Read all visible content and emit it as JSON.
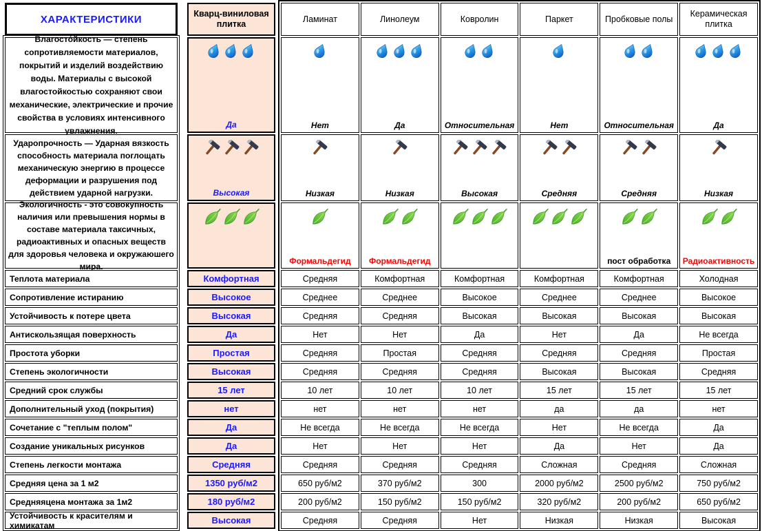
{
  "colors": {
    "accent_blue": "#1a1aff",
    "highlight_bg": "#fce4d6",
    "alert_red": "#ff0000",
    "border": "#000000"
  },
  "left_panel": {
    "title": "ХАРАКТЕРИСТИКИ"
  },
  "quartz_column": {
    "header": "Кварц-виниловая плитка"
  },
  "columns": [
    "Ламинат",
    "Линолеум",
    "Ковролин",
    "Паркет",
    "Пробковые полы",
    "Керамическая плитка"
  ],
  "icon_rows": [
    {
      "key": "moisture-resistance",
      "icon": "water-drop",
      "label_italic": true,
      "description": "Влагосто́йкость — степень сопротивляемости материалов, покрытий и изделий воздействию воды. Материалы с высокой влагостойкостью сохраняют свои механические, электрические и прочие свойства в условиях интенсивного увлажнения.",
      "quartz": {
        "count": 3,
        "label": "Да"
      },
      "cells": [
        {
          "count": 1,
          "label": "Нет",
          "red": false
        },
        {
          "count": 3,
          "label": "Да",
          "red": false
        },
        {
          "count": 2,
          "label": "Относительная",
          "red": false
        },
        {
          "count": 1,
          "label": "Нет",
          "red": false
        },
        {
          "count": 2,
          "label": "Относительная",
          "red": false
        },
        {
          "count": 3,
          "label": "Да",
          "red": false
        }
      ]
    },
    {
      "key": "impact-resistance",
      "icon": "hammer",
      "label_italic": true,
      "description": "Ударопрочность — Ударная вязкость способность материала поглощать механическую энергию в процессе деформации и разрушения под действием ударной нагрузки.",
      "quartz": {
        "count": 3,
        "label": "Высокая"
      },
      "cells": [
        {
          "count": 1,
          "label": "Низкая",
          "red": false
        },
        {
          "count": 1,
          "label": "Низкая",
          "red": false
        },
        {
          "count": 3,
          "label": "Высокая",
          "red": false
        },
        {
          "count": 2,
          "label": "Средняя",
          "red": false
        },
        {
          "count": 2,
          "label": "Средняя",
          "red": false
        },
        {
          "count": 1,
          "label": "Низкая",
          "red": false
        }
      ]
    },
    {
      "key": "eco-friendliness",
      "icon": "leaf",
      "label_italic": false,
      "description": "Экологичность - это совокупность наличия или превышения нормы в составе материала таксичных, радиоактивных и опасных веществ для здоровья человека и окружаюшего мира.",
      "quartz": {
        "count": 3,
        "label": ""
      },
      "cells": [
        {
          "count": 1,
          "label": "Формальдегид",
          "red": true
        },
        {
          "count": 2,
          "label": "Формальдегид",
          "red": true
        },
        {
          "count": 3,
          "label": "",
          "red": false
        },
        {
          "count": 3,
          "label": "",
          "red": false
        },
        {
          "count": 2,
          "label": "пост обработка",
          "red": false
        },
        {
          "count": 2,
          "label": "Радиоактивность",
          "red": true
        }
      ]
    }
  ],
  "simple_rows": [
    {
      "label": "Теплота материала",
      "quartz": "Комфортная",
      "cells": [
        "Средняя",
        "Комфортная",
        "Комфортная",
        "Комфортная",
        "Комфортная",
        "Холодная"
      ]
    },
    {
      "label": "Сопротивление истиранию",
      "quartz": "Высокое",
      "cells": [
        "Среднее",
        "Среднее",
        "Высокое",
        "Среднее",
        "Среднее",
        "Высокое"
      ]
    },
    {
      "label": "Устойчивость к потере цвета",
      "quartz": "Высокая",
      "cells": [
        "Средняя",
        "Средняя",
        "Высокая",
        "Высокая",
        "Высокая",
        "Высокая"
      ]
    },
    {
      "label": "Антискользящая поверхность",
      "quartz": "Да",
      "cells": [
        "Нет",
        "Нет",
        "Да",
        "Нет",
        "Да",
        "Не всегда"
      ]
    },
    {
      "label": "Простота уборки",
      "quartz": "Простая",
      "cells": [
        "Средняя",
        "Простая",
        "Средняя",
        "Средняя",
        "Средняя",
        "Простая"
      ]
    },
    {
      "label": "Степень экологичности",
      "quartz": "Высокая",
      "cells": [
        "Средняя",
        "Средняя",
        "Средняя",
        "Высокая",
        "Высокая",
        "Средняя"
      ]
    },
    {
      "label": "Средний срок службы",
      "quartz": "15 лет",
      "cells": [
        "10 лет",
        "10 лет",
        "10 лет",
        "15 лет",
        "15 лет",
        "15 лет"
      ]
    },
    {
      "label": "Дополнительный уход (покрытия)",
      "quartz": "нет",
      "cells": [
        "нет",
        "нет",
        "нет",
        "да",
        "да",
        "нет"
      ]
    },
    {
      "label": "Сочетание с \"теплым полом\"",
      "quartz": "Да",
      "cells": [
        "Не всегда",
        "Не всегда",
        "Не всегда",
        "Нет",
        "Не всегда",
        "Да"
      ]
    },
    {
      "label": "Создание уникальных рисунков",
      "quartz": "Да",
      "cells": [
        "Нет",
        "Нет",
        "Нет",
        "Да",
        "Нет",
        "Да"
      ]
    },
    {
      "label": "Степень легкости монтажа",
      "quartz": "Средняя",
      "cells": [
        "Средняя",
        "Средняя",
        "Средняя",
        "Сложная",
        "Средняя",
        "Сложная"
      ]
    },
    {
      "label": "Средняя цена за 1 м2",
      "quartz": "1350 руб/м2",
      "cells": [
        "650 руб/м2",
        "370 руб/м2",
        "300",
        "2000 руб/м2",
        "2500 руб/м2",
        "750 руб/м2"
      ]
    },
    {
      "label": "Средняяцена монтажа за 1м2",
      "quartz": "180 руб/м2",
      "cells": [
        "200 руб/м2",
        "150 руб/м2",
        "150 руб/м2",
        "320 руб/м2",
        "200 руб/м2",
        "650 руб/м2"
      ]
    },
    {
      "label": "Устойчивость к красителям и химикатам",
      "quartz": "Высокая",
      "cells": [
        "Средняя",
        "Средняя",
        "Нет",
        "Низкая",
        "Низкая",
        "Высокая"
      ]
    }
  ]
}
